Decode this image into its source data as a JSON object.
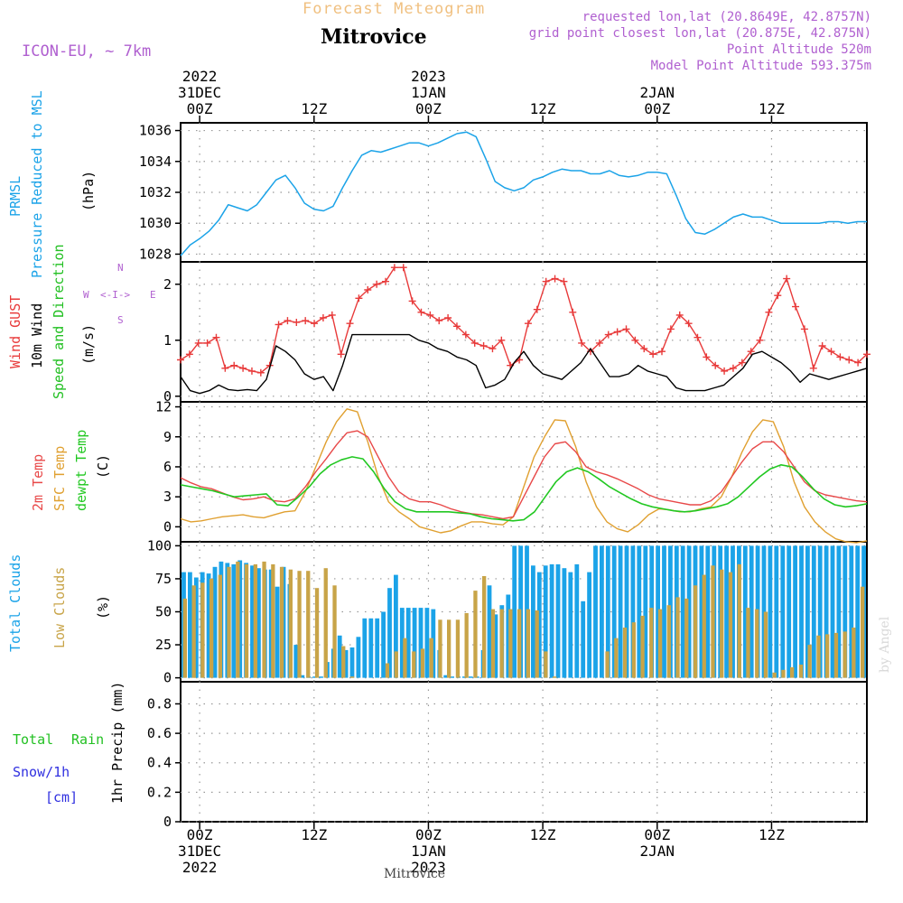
{
  "header": {
    "product": "Forecast Meteogram",
    "model": "ICON-EU, ~ 7km",
    "location": "Mitrovice",
    "requested": "requested lon,lat (20.8649E, 42.8757N)",
    "grid_point": "grid point closest lon,lat (20.875E, 42.875N)",
    "point_altitude": "Point Altitude 520m",
    "model_altitude": "Model Point Altitude 593.375m",
    "footer_location": "Mitrovice",
    "watermark": "by Angel"
  },
  "time_axis": {
    "start": "2022-12-30T22:00Z",
    "end": "2023-01-02T22:00Z",
    "tick_labels": [
      "00Z",
      "12Z",
      "00Z",
      "12Z",
      "00Z",
      "12Z"
    ],
    "top_labels": [
      {
        "lines": [
          "2022",
          "31DEC",
          "00Z"
        ]
      },
      {
        "lines": [
          "12Z"
        ]
      },
      {
        "lines": [
          "2023",
          "1JAN",
          "00Z"
        ]
      },
      {
        "lines": [
          "12Z"
        ]
      },
      {
        "lines": [
          "2JAN",
          "00Z"
        ]
      },
      {
        "lines": [
          "12Z"
        ]
      }
    ],
    "bottom_labels": [
      {
        "lines": [
          "00Z",
          "31DEC",
          "2022"
        ]
      },
      {
        "lines": [
          "12Z"
        ]
      },
      {
        "lines": [
          "00Z",
          "1JAN",
          "2023"
        ]
      },
      {
        "lines": [
          "12Z"
        ]
      },
      {
        "lines": [
          "00Z",
          "2JAN"
        ]
      },
      {
        "lines": [
          "12Z"
        ]
      }
    ]
  },
  "panels": {
    "pressure": {
      "labels": [
        "PRMSL",
        "Pressure Reduced to MSL"
      ],
      "unit": "(hPa)",
      "ticks": [
        "1028",
        "1030",
        "1032",
        "1034",
        "1036"
      ]
    },
    "wind": {
      "labels": [
        "Wind GUST",
        "10m Wind",
        "Speed and Direction"
      ],
      "unit": "(m/s)",
      "ticks": [
        "0",
        "1",
        "2"
      ],
      "compass": {
        "N": "N",
        "S": "S",
        "W": "W",
        "E": "E"
      }
    },
    "temp": {
      "labels": [
        "2m Temp",
        "SFC Temp",
        "dewpt Temp"
      ],
      "unit": "(C)",
      "ticks": [
        "0",
        "3",
        "6",
        "9",
        "12"
      ]
    },
    "clouds": {
      "labels": [
        "Total Clouds",
        "Low Clouds"
      ],
      "unit": "(%)",
      "ticks": [
        "0",
        "25",
        "50",
        "75",
        "100"
      ]
    },
    "precip": {
      "labels": [
        "Total",
        "Rain",
        "Snow/1h",
        "[cm]"
      ],
      "unit": "1hr Precip (mm)",
      "ticks": [
        "0",
        "0.2",
        "0.4",
        "0.6",
        "0.8"
      ]
    }
  },
  "colors": {
    "pressure": "#1ba3e8",
    "gust": "#e83a3a",
    "wind": "#000000",
    "wind_label": "#22c022",
    "temp2m": "#e84848",
    "sfc": "#e0a030",
    "dewpt": "#22c822",
    "total_clouds": "#1ba3e8",
    "low_clouds": "#c8a448",
    "rain": "#22c022",
    "snow": "#3030e0",
    "header_purple": "#b060d0",
    "header_orange": "#f0c080"
  },
  "chart_data": [
    {
      "type": "line",
      "title": "PRMSL",
      "ylabel": "(hPa)",
      "ylim": [
        1027.5,
        1036.5
      ],
      "grid": true,
      "series": [
        {
          "name": "PRMSL",
          "x_hours": [
            0,
            1,
            2,
            3,
            4,
            5,
            6,
            7,
            8,
            9,
            10,
            11,
            12,
            13,
            14,
            15,
            16,
            17,
            18,
            19,
            20,
            21,
            22,
            23,
            24,
            25,
            26,
            27,
            28,
            29,
            30,
            31,
            32,
            33,
            34,
            35,
            36,
            37,
            38,
            39,
            40,
            41,
            42,
            43,
            44,
            45,
            46,
            47,
            48,
            49,
            50,
            51,
            52,
            53,
            54,
            55,
            56,
            57,
            58,
            59,
            60,
            61,
            62,
            63,
            64,
            65,
            66,
            67,
            68,
            69,
            70,
            71,
            72
          ],
          "values": [
            1027.9,
            1028.6,
            1029.0,
            1029.5,
            1030.2,
            1031.2,
            1031.0,
            1030.8,
            1031.2,
            1032.0,
            1032.8,
            1033.1,
            1032.3,
            1031.3,
            1030.9,
            1030.8,
            1031.1,
            1032.3,
            1033.4,
            1034.4,
            1034.7,
            1034.6,
            1034.8,
            1035.0,
            1035.2,
            1035.2,
            1035.0,
            1035.2,
            1035.5,
            1035.8,
            1035.9,
            1035.6,
            1034.2,
            1032.7,
            1032.3,
            1032.1,
            1032.3,
            1032.8,
            1033.0,
            1033.3,
            1033.5,
            1033.4,
            1033.4,
            1033.2,
            1033.2,
            1033.4,
            1033.1,
            1033.0,
            1033.1,
            1033.3,
            1033.3,
            1033.2,
            1031.8,
            1030.3,
            1029.4,
            1029.3,
            1029.6,
            1030.0,
            1030.4,
            1030.6,
            1030.4,
            1030.4,
            1030.2,
            1030.0,
            1030.0,
            1030.0,
            1030.0,
            1030.0,
            1030.1,
            1030.1,
            1030.0,
            1030.1,
            1030.1
          ]
        }
      ]
    },
    {
      "type": "line",
      "title": "Wind",
      "ylabel": "(m/s)",
      "ylim": [
        -0.1,
        2.4
      ],
      "grid": true,
      "series": [
        {
          "name": "Wind GUST",
          "values": [
            0.65,
            0.75,
            0.95,
            0.95,
            1.05,
            0.5,
            0.55,
            0.5,
            0.45,
            0.42,
            0.55,
            1.28,
            1.35,
            1.32,
            1.35,
            1.3,
            1.4,
            1.45,
            0.75,
            1.3,
            1.75,
            1.9,
            2.0,
            2.05,
            2.3,
            2.3,
            1.7,
            1.5,
            1.45,
            1.35,
            1.4,
            1.25,
            1.1,
            0.95,
            0.9,
            0.85,
            1.0,
            0.55,
            0.65,
            1.3,
            1.55,
            2.05,
            2.1,
            2.05,
            1.5,
            0.95,
            0.8,
            0.95,
            1.1,
            1.15,
            1.2,
            1.0,
            0.85,
            0.75,
            0.8,
            1.2,
            1.45,
            1.3,
            1.05,
            0.7,
            0.55,
            0.45,
            0.5,
            0.6,
            0.8,
            1.0,
            1.5,
            1.8,
            2.1,
            1.6,
            1.2,
            0.5,
            0.9,
            0.8,
            0.7,
            0.65,
            0.6,
            0.75
          ]
        },
        {
          "name": "10m Wind",
          "values": [
            0.35,
            0.1,
            0.05,
            0.1,
            0.2,
            0.12,
            0.1,
            0.12,
            0.1,
            0.3,
            0.9,
            0.8,
            0.65,
            0.4,
            0.3,
            0.35,
            0.1,
            0.55,
            1.1,
            1.1,
            1.1,
            1.1,
            1.1,
            1.1,
            1.1,
            1.0,
            0.95,
            0.85,
            0.8,
            0.7,
            0.65,
            0.55,
            0.15,
            0.2,
            0.3,
            0.6,
            0.8,
            0.55,
            0.4,
            0.35,
            0.3,
            0.45,
            0.6,
            0.85,
            0.6,
            0.35,
            0.35,
            0.4,
            0.55,
            0.45,
            0.4,
            0.35,
            0.15,
            0.1,
            0.1,
            0.1,
            0.15,
            0.2,
            0.35,
            0.5,
            0.75,
            0.8,
            0.7,
            0.6,
            0.45,
            0.25,
            0.4,
            0.35,
            0.3,
            0.35,
            0.4,
            0.45,
            0.5
          ]
        }
      ]
    },
    {
      "type": "line",
      "title": "Temperature",
      "ylabel": "(C)",
      "ylim": [
        -1.5,
        12.5
      ],
      "grid": true,
      "series": [
        {
          "name": "2m Temp",
          "values": [
            4.9,
            4.4,
            4.0,
            3.8,
            3.4,
            3.0,
            2.7,
            2.8,
            3.0,
            2.6,
            2.5,
            2.8,
            4.0,
            5.5,
            6.8,
            8.2,
            9.4,
            9.6,
            9.0,
            7.0,
            5.0,
            3.5,
            2.8,
            2.5,
            2.5,
            2.2,
            1.8,
            1.5,
            1.3,
            1.2,
            1.0,
            0.8,
            1.0,
            3.0,
            5.0,
            7.0,
            8.3,
            8.5,
            7.5,
            6.0,
            5.5,
            5.2,
            4.8,
            4.3,
            3.8,
            3.2,
            2.8,
            2.6,
            2.4,
            2.2,
            2.2,
            2.6,
            3.5,
            5.0,
            6.5,
            7.8,
            8.5,
            8.5,
            7.5,
            6.0,
            4.5,
            3.6,
            3.2,
            3.0,
            2.8,
            2.6,
            2.5
          ]
        },
        {
          "name": "SFC Temp",
          "values": [
            0.8,
            0.5,
            0.6,
            0.8,
            1.0,
            1.1,
            1.2,
            1.0,
            0.9,
            1.2,
            1.5,
            1.6,
            3.5,
            6.0,
            8.5,
            10.5,
            11.8,
            11.5,
            8.5,
            5.0,
            2.5,
            1.5,
            0.8,
            0.0,
            -0.3,
            -0.6,
            -0.4,
            0.1,
            0.5,
            0.5,
            0.3,
            0.2,
            1.0,
            4.0,
            7.0,
            9.0,
            10.7,
            10.6,
            8.0,
            4.5,
            2.0,
            0.5,
            -0.2,
            -0.5,
            0.2,
            1.2,
            1.8,
            1.7,
            1.5,
            1.5,
            1.8,
            2.0,
            3.0,
            5.0,
            7.5,
            9.5,
            10.7,
            10.5,
            8.0,
            4.5,
            2.0,
            0.5,
            -0.5,
            -1.2,
            -1.5,
            -1.6,
            -1.4
          ]
        },
        {
          "name": "dewpt Temp",
          "values": [
            4.2,
            4.0,
            3.8,
            3.6,
            3.3,
            3.0,
            3.1,
            3.2,
            3.3,
            2.2,
            2.1,
            3.0,
            4.0,
            5.3,
            6.2,
            6.7,
            7.0,
            6.8,
            5.5,
            3.8,
            2.5,
            1.8,
            1.5,
            1.5,
            1.5,
            1.5,
            1.4,
            1.3,
            1.0,
            0.8,
            0.7,
            0.6,
            0.7,
            1.5,
            3.0,
            4.5,
            5.5,
            5.9,
            5.5,
            4.8,
            4.0,
            3.4,
            2.8,
            2.3,
            2.0,
            1.8,
            1.6,
            1.5,
            1.6,
            1.8,
            2.0,
            2.3,
            3.0,
            4.0,
            5.0,
            5.8,
            6.2,
            6.0,
            5.0,
            3.8,
            2.8,
            2.2,
            2.0,
            2.1,
            2.3
          ]
        }
      ]
    },
    {
      "type": "bar",
      "title": "Clouds",
      "ylabel": "(%)",
      "ylim": [
        -3,
        103
      ],
      "grid": true,
      "series": [
        {
          "name": "Total Clouds",
          "values": [
            80,
            80,
            76,
            80,
            79,
            84,
            88,
            87,
            86,
            89,
            87,
            85,
            83,
            82,
            82,
            69,
            84,
            71,
            25,
            2,
            1,
            1,
            1,
            12,
            22,
            32,
            21,
            23,
            31,
            45,
            45,
            45,
            50,
            68,
            78,
            53,
            53,
            53,
            53,
            53,
            52,
            21,
            2,
            1,
            1,
            1,
            1,
            1,
            21,
            70,
            48,
            55,
            63,
            100,
            100,
            100,
            85,
            80,
            85,
            86,
            86,
            83,
            80,
            86,
            58,
            80,
            100,
            100,
            100,
            100,
            100,
            100,
            100,
            100,
            100,
            100,
            100,
            100,
            100,
            100,
            100,
            100,
            100,
            100,
            100,
            100,
            100,
            100,
            100,
            100,
            100,
            100,
            100,
            100,
            100,
            100,
            100,
            100,
            100,
            100,
            100,
            100,
            100,
            100,
            100,
            100,
            100,
            100,
            100,
            100
          ]
        },
        {
          "name": "Low Clouds",
          "values": [
            60,
            70,
            72,
            75,
            78,
            84,
            88,
            86,
            86,
            88,
            86,
            84,
            82,
            81,
            81,
            68,
            83,
            70,
            24,
            1,
            0,
            0,
            0,
            11,
            20,
            30,
            20,
            22,
            30,
            44,
            44,
            44,
            49,
            66,
            77,
            52,
            52,
            52,
            52,
            52,
            51,
            20,
            1,
            0,
            0,
            0,
            0,
            0,
            20,
            30,
            38,
            42,
            47,
            53,
            52,
            55,
            61,
            60,
            70,
            78,
            85,
            82,
            80,
            86,
            53,
            52,
            50,
            4,
            6,
            8,
            10,
            25,
            32,
            33,
            34,
            35,
            38,
            69
          ]
        }
      ]
    },
    {
      "type": "bar",
      "title": "Precipitation",
      "ylabel": "1hr Precip (mm)",
      "ylim": [
        0,
        0.95
      ],
      "grid": true,
      "series": [
        {
          "name": "Total",
          "values": []
        },
        {
          "name": "Rain",
          "values": []
        },
        {
          "name": "Snow/1h",
          "values": []
        }
      ]
    }
  ]
}
